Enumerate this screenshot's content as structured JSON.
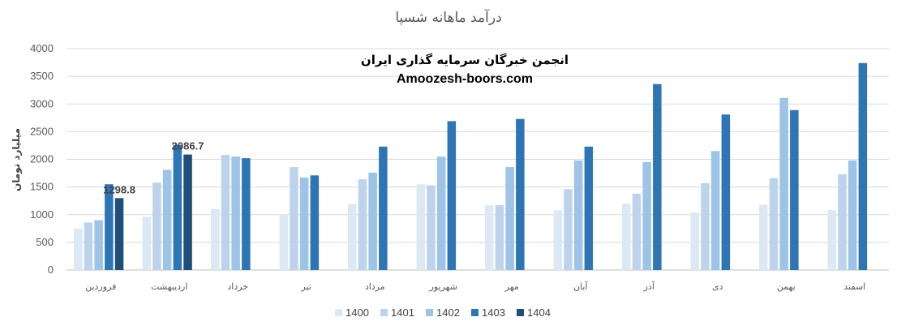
{
  "chart_data": {
    "type": "bar",
    "title": "درآمد ماهانه شسپا",
    "ylabel": "میلیارد تومان",
    "xlabel": "",
    "ylim": [
      0,
      4000
    ],
    "yticks": [
      0,
      500,
      1000,
      1500,
      2000,
      2500,
      3000,
      3500,
      4000
    ],
    "grid": true,
    "legend": "bottom",
    "categories": [
      "فروردین",
      "اردیبهشت",
      "خرداد",
      "تیر",
      "مرداد",
      "شهریور",
      "مهر",
      "آبان",
      "آذر",
      "دی",
      "بهمن",
      "اسفند"
    ],
    "series": [
      {
        "name": "1400",
        "color": "#dde8f5",
        "values": [
          750,
          960,
          1100,
          1000,
          1190,
          1550,
          1170,
          1080,
          1200,
          1040,
          1180,
          1080
        ]
      },
      {
        "name": "1401",
        "color": "#bdd3ec",
        "values": [
          860,
          1580,
          2080,
          1860,
          1640,
          1530,
          1170,
          1460,
          1380,
          1570,
          1660,
          1730
        ]
      },
      {
        "name": "1402",
        "color": "#9dc3e6",
        "values": [
          900,
          1810,
          2050,
          1670,
          1760,
          2050,
          1860,
          1980,
          1950,
          2150,
          3110,
          1980
        ]
      },
      {
        "name": "1403",
        "color": "#2e75b6",
        "values": [
          1550,
          2260,
          2020,
          1710,
          2230,
          2690,
          2730,
          2230,
          3360,
          2810,
          2890,
          3740
        ]
      },
      {
        "name": "1404",
        "color": "#1f4e79",
        "values": [
          1298.8,
          2086.7,
          null,
          null,
          null,
          null,
          null,
          null,
          null,
          null,
          null,
          null
        ]
      }
    ],
    "data_labels": [
      {
        "series": "1404",
        "category": "فروردین",
        "text": "1298.8"
      },
      {
        "series": "1404",
        "category": "اردیبهشت",
        "text": "2086.7"
      }
    ],
    "watermark": {
      "line1": "انجمن خبرگان سرمایه گذاری ایران",
      "line2": "Amoozesh-boors.com"
    }
  }
}
